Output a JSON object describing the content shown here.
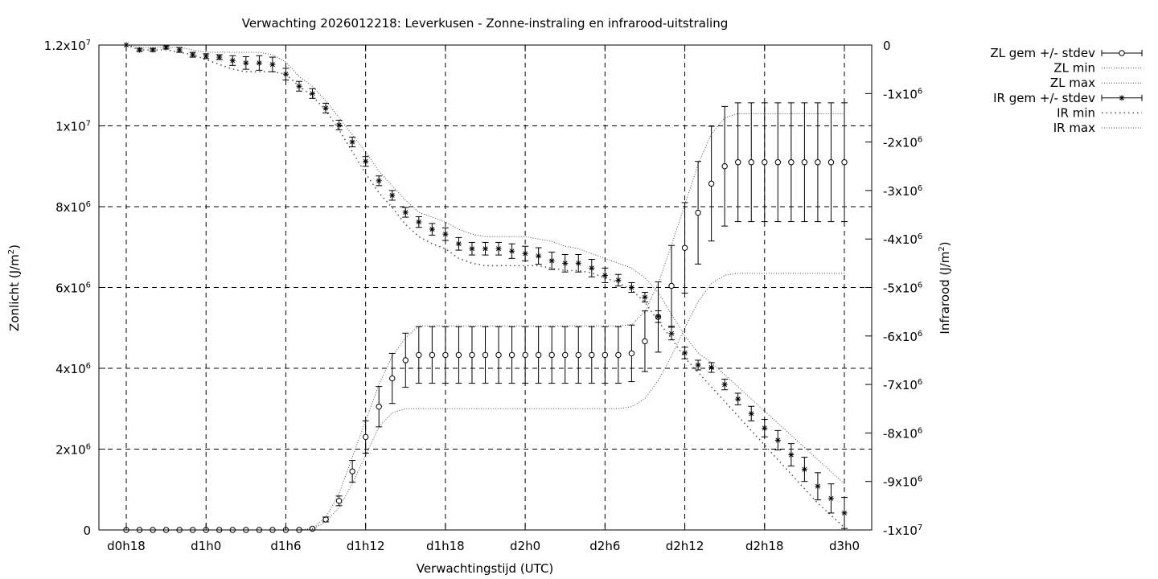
{
  "chart_data": {
    "type": "line",
    "title": "Verwachting 2026012218: Leverkusen - Zonne-instraling en infrarood-uitstraling",
    "xlabel": "Verwachtingstijd (UTC)",
    "ylabel": "Zonlicht (J/m2)",
    "ylabel_base": "Zonlicht (J/m",
    "ylabel_sup": "2",
    "ylabel_end": ")",
    "y2label": "Infrarood (J/m2)",
    "y2label_base": "Infrarood (J/m",
    "y2label_sup": "2",
    "y2label_end": ")",
    "x_unit": "hours from d0h18 (d0h18 = 0)",
    "xlim": [
      -2,
      58
    ],
    "ylim": [
      0,
      12000000
    ],
    "y2lim": [
      -10000000,
      0
    ],
    "grid": true,
    "legend_position": "outside-right",
    "x_ticks": [
      {
        "v": 0,
        "label": "d0h18"
      },
      {
        "v": 6,
        "label": "d1h0"
      },
      {
        "v": 12,
        "label": "d1h6"
      },
      {
        "v": 18,
        "label": "d1h12"
      },
      {
        "v": 24,
        "label": "d1h18"
      },
      {
        "v": 30,
        "label": "d2h0"
      },
      {
        "v": 36,
        "label": "d2h6"
      },
      {
        "v": 42,
        "label": "d2h12"
      },
      {
        "v": 48,
        "label": "d2h18"
      },
      {
        "v": 54,
        "label": "d3h0"
      }
    ],
    "y_ticks": [
      {
        "v": 0,
        "base": "0",
        "exp": ""
      },
      {
        "v": 2000000,
        "base": "2x10",
        "exp": "6"
      },
      {
        "v": 4000000,
        "base": "4x10",
        "exp": "6"
      },
      {
        "v": 6000000,
        "base": "6x10",
        "exp": "6"
      },
      {
        "v": 8000000,
        "base": "8x10",
        "exp": "6"
      },
      {
        "v": 10000000,
        "base": "1x10",
        "exp": "7"
      },
      {
        "v": 12000000,
        "base": "1.2x10",
        "exp": "7"
      }
    ],
    "y2_ticks": [
      {
        "v": 0,
        "base": "0",
        "exp": ""
      },
      {
        "v": -1000000,
        "base": "-1x10",
        "exp": "6"
      },
      {
        "v": -2000000,
        "base": "-2x10",
        "exp": "6"
      },
      {
        "v": -3000000,
        "base": "-3x10",
        "exp": "6"
      },
      {
        "v": -4000000,
        "base": "-4x10",
        "exp": "6"
      },
      {
        "v": -5000000,
        "base": "-5x10",
        "exp": "6"
      },
      {
        "v": -6000000,
        "base": "-6x10",
        "exp": "6"
      },
      {
        "v": -7000000,
        "base": "-7x10",
        "exp": "6"
      },
      {
        "v": -8000000,
        "base": "-8x10",
        "exp": "6"
      },
      {
        "v": -9000000,
        "base": "-9x10",
        "exp": "6"
      },
      {
        "v": -10000000,
        "base": "-1x10",
        "exp": "7"
      }
    ],
    "legend": [
      {
        "label": "ZL gem +/- stdev",
        "style": "errorbar-circle"
      },
      {
        "label": "ZL min",
        "style": "dotted"
      },
      {
        "label": "ZL max",
        "style": "dotted"
      },
      {
        "label": "IR gem +/- stdev",
        "style": "errorbar-star"
      },
      {
        "label": "IR min",
        "style": "dotted-coarse"
      },
      {
        "label": "IR max",
        "style": "dotted"
      }
    ],
    "x": [
      0,
      1,
      2,
      3,
      4,
      5,
      6,
      7,
      8,
      9,
      10,
      11,
      12,
      13,
      14,
      15,
      16,
      17,
      18,
      19,
      20,
      21,
      22,
      23,
      24,
      25,
      26,
      27,
      28,
      29,
      30,
      31,
      32,
      33,
      34,
      35,
      36,
      37,
      38,
      39,
      40,
      41,
      42,
      43,
      44,
      45,
      46,
      47,
      48,
      49,
      50,
      51,
      52,
      53,
      54
    ],
    "series": [
      {
        "name": "ZL gem +/- stdev",
        "axis": "y",
        "mean": [
          0,
          0,
          0,
          0,
          0,
          0,
          0,
          0,
          0,
          0,
          0,
          0,
          0,
          0,
          30000,
          260000,
          720000,
          1450000,
          2300000,
          3050000,
          3750000,
          4200000,
          4330000,
          4330000,
          4330000,
          4330000,
          4330000,
          4330000,
          4330000,
          4330000,
          4330000,
          4330000,
          4330000,
          4330000,
          4330000,
          4330000,
          4330000,
          4330000,
          4370000,
          4670000,
          5270000,
          6040000,
          6980000,
          7850000,
          8570000,
          9000000,
          9100000,
          9100000,
          9100000,
          9100000,
          9100000,
          9100000,
          9100000,
          9100000,
          9100000
        ],
        "stdev": [
          0,
          0,
          0,
          0,
          0,
          0,
          0,
          0,
          0,
          0,
          0,
          0,
          0,
          0,
          20000,
          60000,
          120000,
          270000,
          400000,
          500000,
          620000,
          670000,
          700000,
          700000,
          700000,
          700000,
          700000,
          700000,
          700000,
          700000,
          700000,
          700000,
          700000,
          700000,
          700000,
          700000,
          700000,
          700000,
          700000,
          750000,
          870000,
          1000000,
          1120000,
          1270000,
          1420000,
          1480000,
          1470000,
          1470000,
          1470000,
          1470000,
          1470000,
          1470000,
          1470000,
          1470000,
          1470000
        ]
      },
      {
        "name": "ZL min",
        "axis": "y",
        "values": [
          0,
          0,
          0,
          0,
          0,
          0,
          0,
          0,
          0,
          0,
          0,
          0,
          0,
          0,
          20000,
          200000,
          550000,
          1150000,
          1850000,
          2550000,
          2900000,
          3000000,
          3000000,
          3000000,
          3000000,
          3000000,
          3000000,
          3000000,
          3000000,
          3000000,
          3000000,
          3000000,
          3000000,
          3000000,
          3000000,
          3000000,
          3000000,
          3000000,
          3050000,
          3250000,
          3700000,
          4300000,
          5000000,
          5650000,
          6100000,
          6300000,
          6350000,
          6350000,
          6350000,
          6350000,
          6350000,
          6350000,
          6350000,
          6350000,
          6350000
        ]
      },
      {
        "name": "ZL max",
        "axis": "y",
        "values": [
          0,
          0,
          0,
          0,
          0,
          0,
          0,
          0,
          0,
          0,
          0,
          0,
          0,
          0,
          40000,
          310000,
          900000,
          1800000,
          2700000,
          3600000,
          4300000,
          4750000,
          5050000,
          5050000,
          5050000,
          5050000,
          5050000,
          5050000,
          5050000,
          5050000,
          5050000,
          5050000,
          5050000,
          5050000,
          5050000,
          5050000,
          5050000,
          5050000,
          5080000,
          5400000,
          6100000,
          7050000,
          8050000,
          9050000,
          9800000,
          10200000,
          10300000,
          10300000,
          10300000,
          10300000,
          10300000,
          10300000,
          10300000,
          10300000,
          10300000
        ]
      },
      {
        "name": "IR gem +/- stdev",
        "axis": "y2",
        "mean": [
          0,
          -100000,
          -100000,
          -50000,
          -100000,
          -200000,
          -230000,
          -250000,
          -320000,
          -370000,
          -370000,
          -400000,
          -600000,
          -850000,
          -1000000,
          -1300000,
          -1650000,
          -2000000,
          -2400000,
          -2800000,
          -3100000,
          -3450000,
          -3650000,
          -3800000,
          -3900000,
          -4100000,
          -4200000,
          -4200000,
          -4200000,
          -4250000,
          -4300000,
          -4350000,
          -4450000,
          -4500000,
          -4500000,
          -4600000,
          -4750000,
          -4850000,
          -5000000,
          -5200000,
          -5600000,
          -5950000,
          -6350000,
          -6600000,
          -6650000,
          -7000000,
          -7300000,
          -7600000,
          -7900000,
          -8150000,
          -8450000,
          -8750000,
          -9100000,
          -9350000,
          -9650000
        ],
        "stdev": [
          0,
          30000,
          30000,
          30000,
          50000,
          50000,
          50000,
          50000,
          100000,
          130000,
          150000,
          150000,
          120000,
          100000,
          100000,
          100000,
          100000,
          100000,
          100000,
          100000,
          100000,
          100000,
          110000,
          120000,
          130000,
          130000,
          130000,
          130000,
          130000,
          150000,
          150000,
          170000,
          180000,
          180000,
          180000,
          180000,
          150000,
          120000,
          100000,
          100000,
          120000,
          130000,
          120000,
          100000,
          100000,
          110000,
          120000,
          150000,
          180000,
          200000,
          230000,
          250000,
          280000,
          300000,
          320000
        ]
      },
      {
        "name": "IR min",
        "axis": "y2",
        "values": [
          0,
          -100000,
          -100000,
          -100000,
          -150000,
          -200000,
          -300000,
          -400000,
          -500000,
          -550000,
          -550000,
          -550000,
          -600000,
          -850000,
          -1050000,
          -1350000,
          -1750000,
          -2200000,
          -2650000,
          -3050000,
          -3350000,
          -3700000,
          -3950000,
          -4100000,
          -4200000,
          -4400000,
          -4500000,
          -4550000,
          -4550000,
          -4550000,
          -4550000,
          -4550000,
          -4600000,
          -4650000,
          -4650000,
          -4700000,
          -4800000,
          -4900000,
          -5050000,
          -5300000,
          -5700000,
          -6050000,
          -6450000,
          -6750000,
          -7050000,
          -7350000,
          -7650000,
          -7950000,
          -8250000,
          -8550000,
          -8850000,
          -9150000,
          -9450000,
          -9700000,
          -9950000
        ]
      },
      {
        "name": "IR max",
        "axis": "y2",
        "values": [
          0,
          -50000,
          -50000,
          -50000,
          -50000,
          -100000,
          -150000,
          -150000,
          -150000,
          -150000,
          -150000,
          -200000,
          -350000,
          -650000,
          -850000,
          -1150000,
          -1500000,
          -1850000,
          -2200000,
          -2600000,
          -2900000,
          -3200000,
          -3450000,
          -3550000,
          -3650000,
          -3800000,
          -3900000,
          -3950000,
          -3950000,
          -3950000,
          -3950000,
          -4000000,
          -4050000,
          -4150000,
          -4200000,
          -4300000,
          -4400000,
          -4500000,
          -4600000,
          -4800000,
          -5100000,
          -5550000,
          -6000000,
          -6350000,
          -6550000,
          -6800000,
          -7050000,
          -7300000,
          -7550000,
          -7800000,
          -8050000,
          -8300000,
          -8550000,
          -8800000,
          -9050000
        ]
      }
    ]
  }
}
